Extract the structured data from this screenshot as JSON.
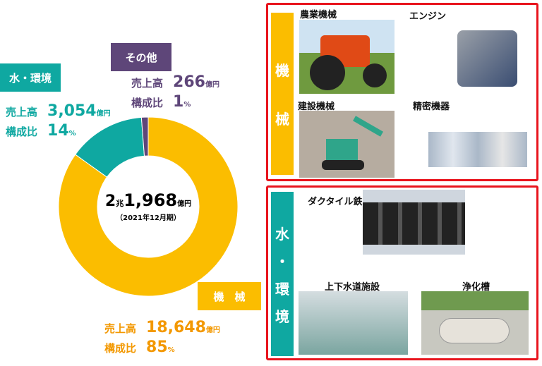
{
  "colors": {
    "machinery": "#fbbd00",
    "water": "#0fa8a1",
    "other": "#5e4679",
    "machinery_text": "#f39800",
    "frame": "#e8141d"
  },
  "chart_data": {
    "type": "pie",
    "donut": true,
    "slices": [
      {
        "name": "機　械",
        "value": 18648,
        "share_percent": 85
      },
      {
        "name": "水・環境",
        "value": 3054,
        "share_percent": 14
      },
      {
        "name": "その他",
        "value": 266,
        "share_percent": 1
      }
    ],
    "center_total": {
      "cho": "2",
      "cho_unit": "兆",
      "value": "1,968",
      "unit": "億円",
      "period": "（2021年12月期）"
    }
  },
  "segments": {
    "other": {
      "label": "その他",
      "sales_label": "売上高",
      "sales": "266",
      "sales_unit": "億円",
      "ratio_label": "構成比",
      "ratio": "1",
      "ratio_unit": "%"
    },
    "water": {
      "label": "水・環境",
      "sales_label": "売上高",
      "sales": "3,054",
      "sales_unit": "億円",
      "ratio_label": "構成比",
      "ratio": "14",
      "ratio_unit": "%"
    },
    "machinery": {
      "label": "機　械",
      "sales_label": "売上高",
      "sales": "18,648",
      "sales_unit": "億円",
      "ratio_label": "構成比",
      "ratio": "85",
      "ratio_unit": "%"
    }
  },
  "panels": {
    "machinery": {
      "chars": [
        "機",
        "械"
      ],
      "items": [
        "農業機械",
        "エンジン",
        "建設機械",
        "精密機器"
      ]
    },
    "water": {
      "chars": [
        "水",
        "・",
        "環",
        "境"
      ],
      "items": [
        "ダクタイル鉄管",
        "上下水道施設",
        "浄化槽"
      ]
    }
  }
}
